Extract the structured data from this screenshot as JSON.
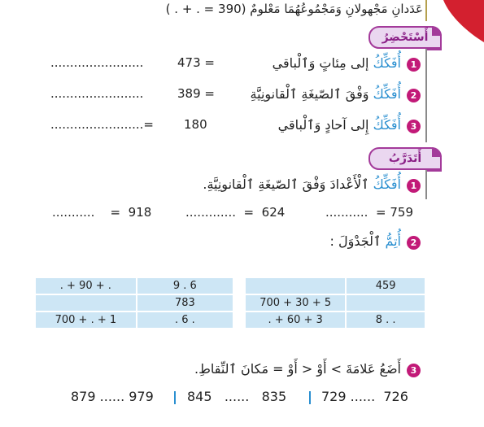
{
  "header": {
    "line": "عَدَدانِ مَجْهولانِ وَمَجْمُوعُهُمَا مَعْلومٌ",
    "equation": "( . + . = 390)"
  },
  "section1": {
    "tab_label": "أَسْتَحْضِرُ",
    "items": [
      {
        "num": "1",
        "verb": "أُفَكِّكُ",
        "rest": "إلى مِئاتٍ وَٱلْباقي",
        "value": "473 =",
        "dots": "........................"
      },
      {
        "num": "2",
        "verb": "أُفَكِّكُ",
        "rest": "وَفْقَ ٱلصّيغَةِ ٱلْقانونِيَّةِ",
        "value": "389 =",
        "dots": "........................"
      },
      {
        "num": "3",
        "verb": "أُفَكِّكُ",
        "rest": "إِلى آحادٍ وَٱلْباقي",
        "value": "180",
        "dots": "........................="
      }
    ]
  },
  "section2": {
    "tab_label": "أَتَدَرَّبُ",
    "item1": {
      "num": "1",
      "verb": "أُفَكِّكُ",
      "rest": "ٱلْأَعْدادَ وَفْقَ ٱلصّيغَةِ ٱلْقانونِيَّةِ.",
      "expressions": [
        {
          "num": "759",
          "eq": "=",
          "dots": "..........."
        },
        {
          "num": "624",
          "eq": "=",
          "dots": "............."
        },
        {
          "num": "918",
          "eq": "=",
          "dots": "..........."
        }
      ]
    },
    "item2": {
      "num": "2",
      "verb": "أُتِمُّ",
      "rest": "ٱلْجَدْوَلَ :",
      "table_right": [
        [
          "",
          "459"
        ],
        [
          "700 + 30 + 5",
          ""
        ],
        [
          ". + 60 + 3",
          "8 . ."
        ]
      ],
      "table_left": [
        [
          ". + 90 + .",
          "9 . 6"
        ],
        [
          "",
          "783"
        ],
        [
          "700 + . + 1",
          ". 6 ."
        ]
      ]
    },
    "item3": {
      "num": "3",
      "text": "أَضَعُ عَلامَةَ > أَوْ < أَوْ = مَكانَ ٱلنِّقاطِ.",
      "comparisons": [
        {
          "a": "726",
          "dots": "......",
          "b": "729"
        },
        {
          "a": "835",
          "dots": "......",
          "b": "845"
        },
        {
          "a": "979",
          "dots": "......",
          "b": "879"
        }
      ]
    }
  },
  "colors": {
    "magenta": "#c21a78",
    "tab_border": "#a33a9a",
    "tab_fill": "#ead7f0",
    "accent_blue": "#2a8fd0",
    "table_fill": "#cde6f5",
    "corner_red": "#d3202f"
  }
}
